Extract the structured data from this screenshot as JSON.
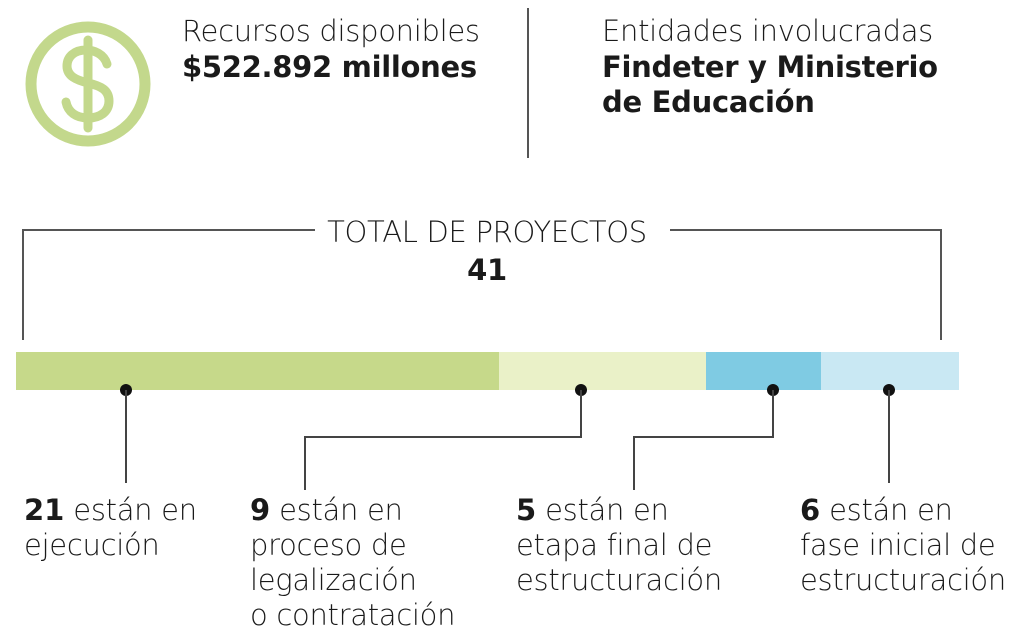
{
  "resources": {
    "label": "Recursos disponibles",
    "value": "$522.892 millones",
    "icon": "dollar-icon"
  },
  "entities": {
    "label": "Entidades involucradas",
    "value_line1": "Findeter y Ministerio",
    "value_line2": "de Educación"
  },
  "total": {
    "label": "TOTAL DE PROYECTOS",
    "value": "41"
  },
  "colors": {
    "icon": "#c3d88c",
    "line": "#555555"
  },
  "chart_data": {
    "type": "bar",
    "orientation": "horizontal-stacked",
    "total": 41,
    "segments": [
      {
        "value": 21,
        "color": "#c6d98a",
        "lines": [
          "están en",
          "ejecución"
        ]
      },
      {
        "value": 9,
        "color": "#eaf1c8",
        "lines": [
          "están en",
          "proceso de",
          "legalización",
          "o contratación"
        ]
      },
      {
        "value": 5,
        "color": "#7fcbe3",
        "lines": [
          "están en",
          "etapa final de",
          "estructuración"
        ]
      },
      {
        "value": 6,
        "color": "#c9e8f3",
        "lines": [
          "están en",
          "fase inicial de",
          "estructuración"
        ]
      }
    ]
  }
}
